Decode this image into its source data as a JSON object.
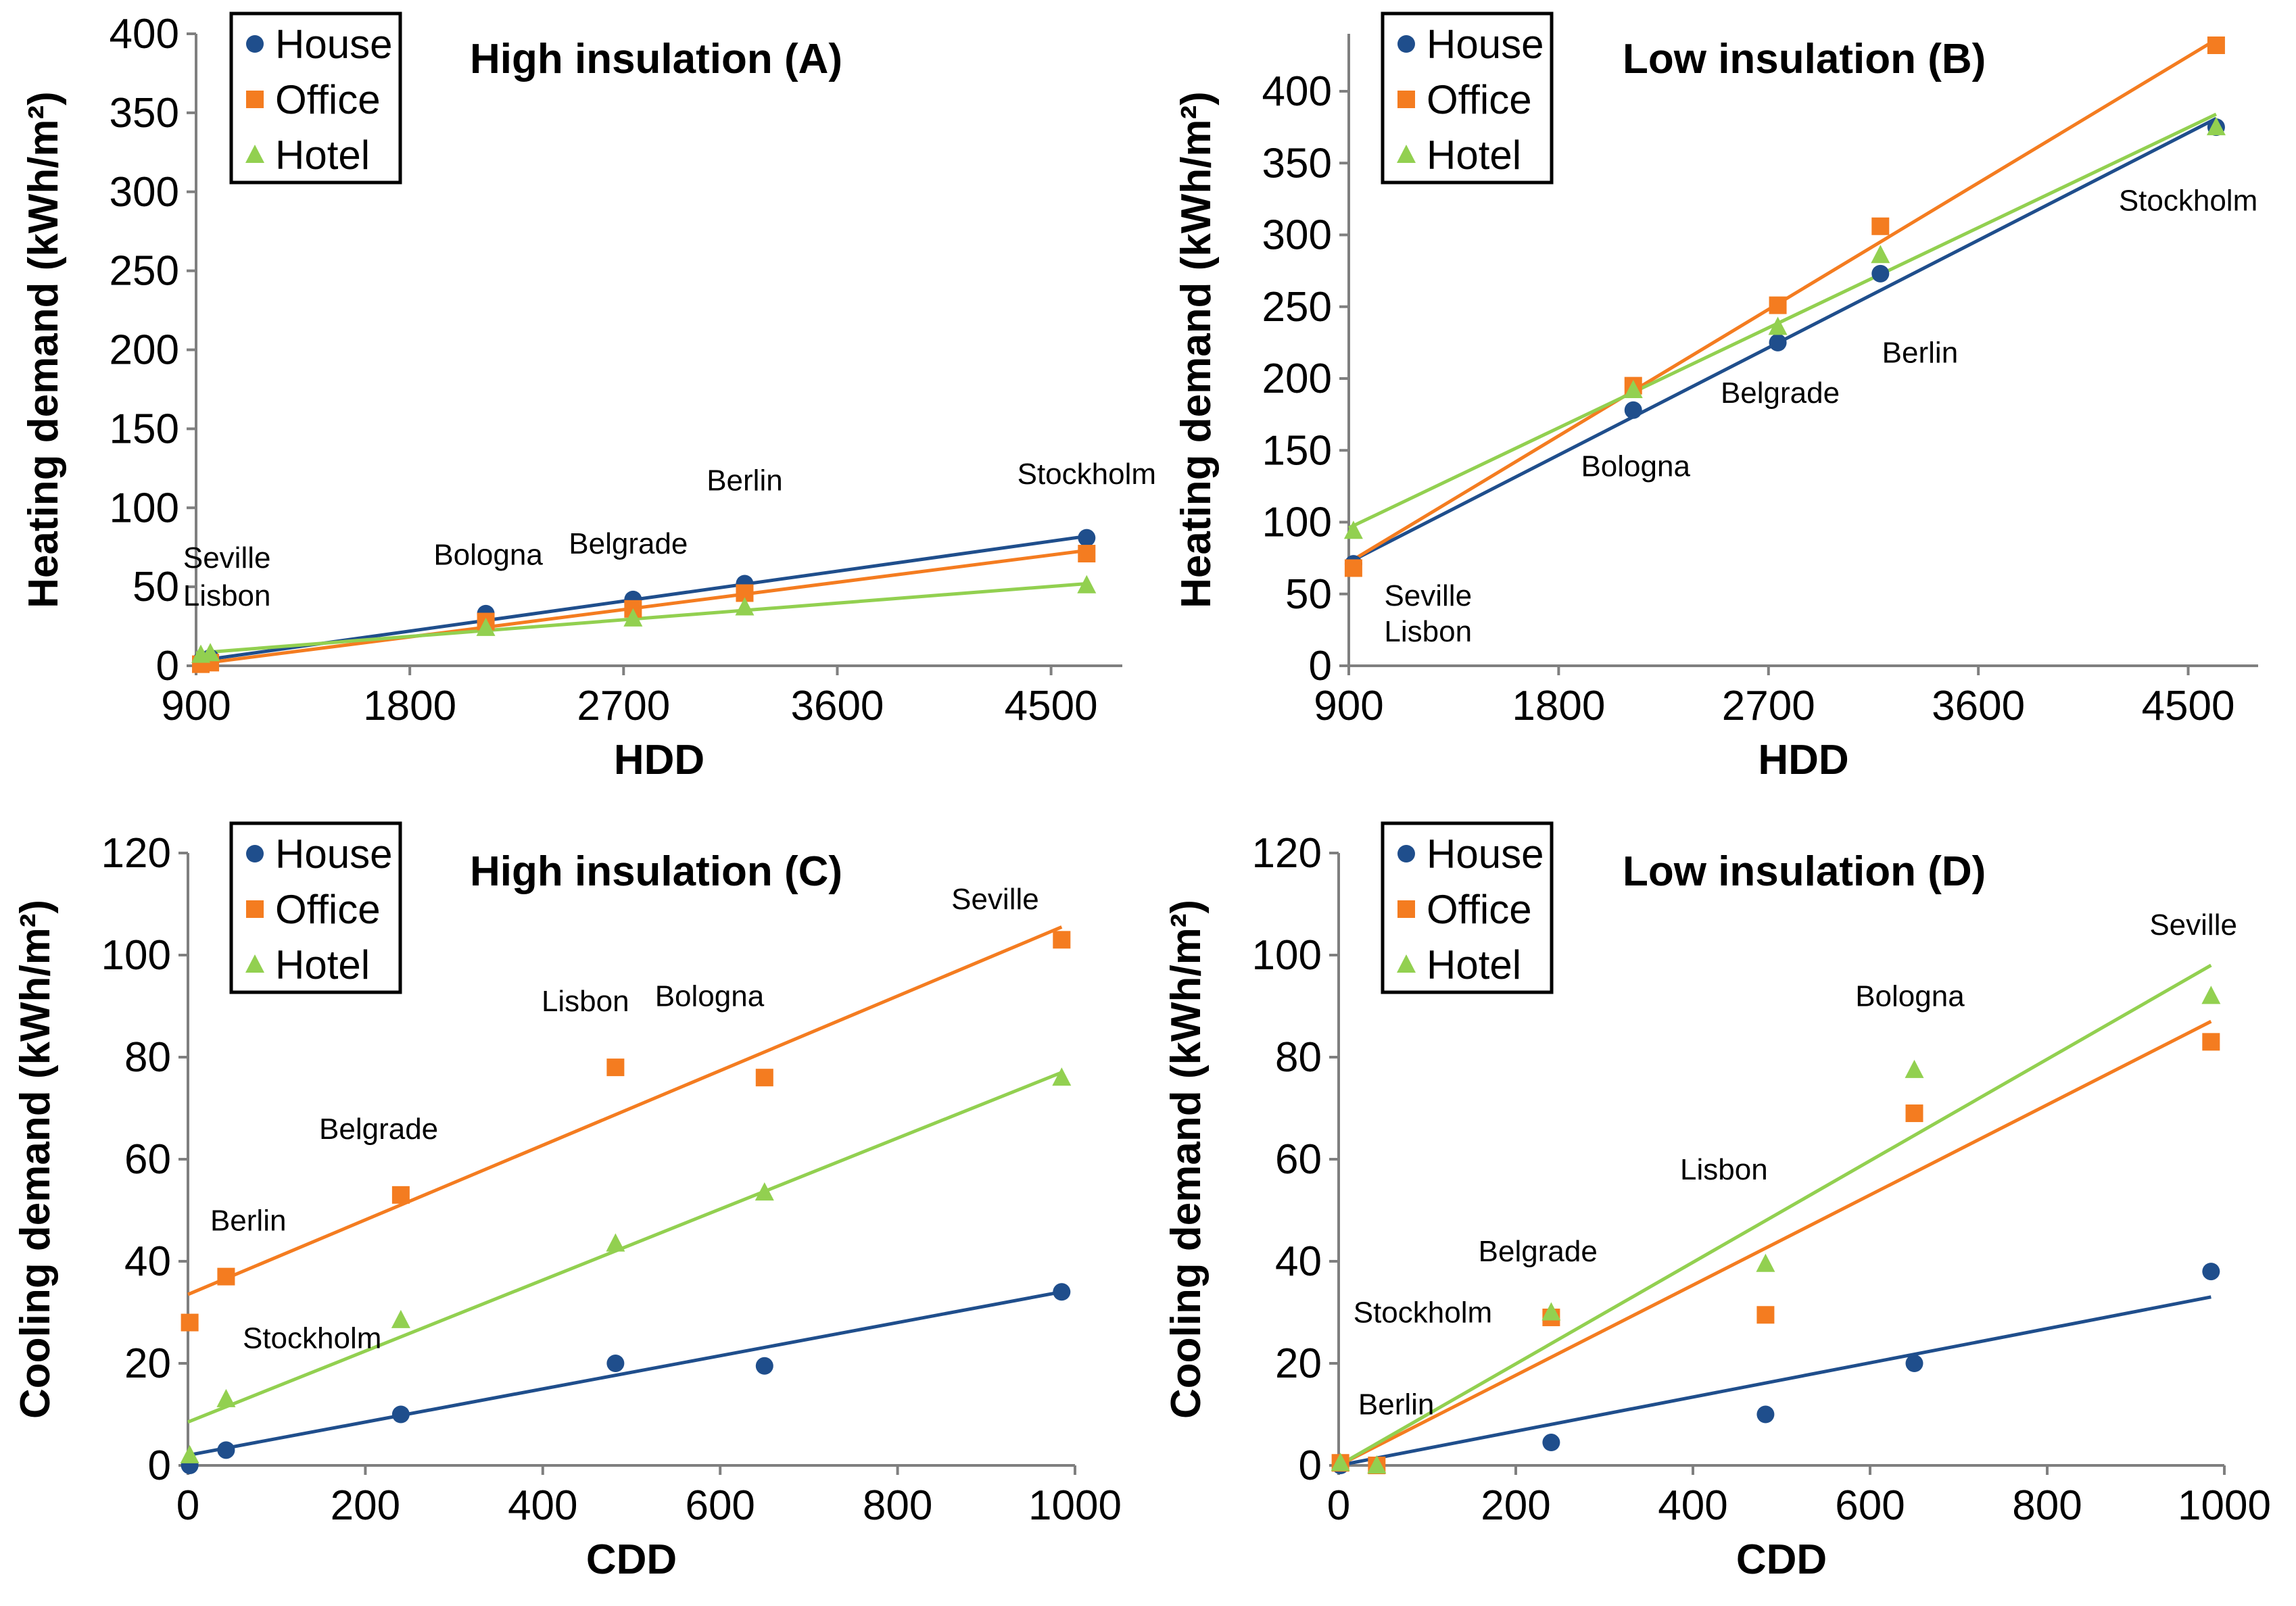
{
  "chart_data": [
    {
      "id": "A",
      "type": "scatter",
      "title": "High insulation (A)",
      "xlabel": "HDD",
      "ylabel": "Heating demand (kWh/m²)",
      "xlim": [
        900,
        4800
      ],
      "ylim": [
        0,
        400
      ],
      "xticks": [
        900,
        1800,
        2700,
        3600,
        4500
      ],
      "yticks": [
        0,
        50,
        100,
        150,
        200,
        250,
        300,
        350,
        400
      ],
      "xtick_labels": [
        "900",
        "1800",
        "2700",
        "3600",
        "4500"
      ],
      "ytick_labels": [
        "0",
        "50",
        "100",
        "150",
        "200",
        "250",
        "300",
        "350",
        "400"
      ],
      "legend": [
        "House",
        "Office",
        "Hotel"
      ],
      "legend_position": "top-left",
      "series": [
        {
          "name": "House",
          "color": "#1f4e8c",
          "marker": "circle",
          "x": [
            920,
            960,
            2120,
            2740,
            3210,
            4650
          ],
          "y": [
            3,
            5,
            33,
            42,
            52,
            81
          ],
          "fit": [
            [
              900,
              3
            ],
            [
              4650,
              82
            ]
          ]
        },
        {
          "name": "Office",
          "color": "#f47c20",
          "marker": "square",
          "x": [
            920,
            960,
            2120,
            2740,
            3210,
            4650
          ],
          "y": [
            1,
            2,
            28,
            36,
            46,
            71
          ],
          "fit": [
            [
              900,
              1
            ],
            [
              4650,
              73
            ]
          ]
        },
        {
          "name": "Hotel",
          "color": "#92d050",
          "marker": "triangle",
          "x": [
            920,
            960,
            2120,
            2740,
            3210,
            4650
          ],
          "y": [
            7,
            8,
            24,
            30,
            37,
            51
          ],
          "fit": [
            [
              900,
              8
            ],
            [
              4650,
              52
            ]
          ]
        }
      ],
      "annotations": [
        {
          "text": "Seville",
          "x": 1030,
          "y": 62
        },
        {
          "text": "Lisbon",
          "x": 1030,
          "y": 38
        },
        {
          "text": "Bologna",
          "x": 2130,
          "y": 64
        },
        {
          "text": "Belgrade",
          "x": 2720,
          "y": 71
        },
        {
          "text": "Berlin",
          "x": 3210,
          "y": 111
        },
        {
          "text": "Stockholm",
          "x": 4650,
          "y": 115
        }
      ]
    },
    {
      "id": "B",
      "type": "scatter",
      "title": "Low insulation (B)",
      "xlabel": "HDD",
      "ylabel": "Heating demand (kWh/m²)",
      "xlim": [
        900,
        4800
      ],
      "ylim": [
        0,
        440
      ],
      "xticks": [
        900,
        1800,
        2700,
        3600,
        4500
      ],
      "yticks": [
        0,
        50,
        100,
        150,
        200,
        250,
        300,
        350,
        400
      ],
      "xtick_labels": [
        "900",
        "1800",
        "2700",
        "3600",
        "4500"
      ],
      "ytick_labels": [
        "0",
        "50",
        "100",
        "150",
        "200",
        "250",
        "300",
        "350",
        "400"
      ],
      "legend": [
        "House",
        "Office",
        "Hotel"
      ],
      "legend_position": "top-left",
      "series": [
        {
          "name": "House",
          "color": "#1f4e8c",
          "marker": "circle",
          "x": [
            920,
            2120,
            2740,
            3180,
            4620
          ],
          "y": [
            71,
            178,
            225,
            273,
            375
          ],
          "fit": [
            [
              900,
              72
            ],
            [
              4620,
              381
            ]
          ]
        },
        {
          "name": "Office",
          "color": "#f47c20",
          "marker": "square",
          "x": [
            920,
            2120,
            2740,
            3180,
            4620
          ],
          "y": [
            68,
            195,
            251,
            306,
            432
          ],
          "fit": [
            [
              900,
              72
            ],
            [
              4620,
              436
            ]
          ]
        },
        {
          "name": "Hotel",
          "color": "#92d050",
          "marker": "triangle",
          "x": [
            920,
            2120,
            2740,
            3180,
            4620
          ],
          "y": [
            94,
            192,
            236,
            286,
            375
          ],
          "fit": [
            [
              900,
              96
            ],
            [
              4620,
              384
            ]
          ]
        }
      ],
      "annotations": [
        {
          "text": "Seville",
          "x": 1240,
          "y": 42
        },
        {
          "text": "Lisbon",
          "x": 1240,
          "y": 17
        },
        {
          "text": "Bologna",
          "x": 2130,
          "y": 132
        },
        {
          "text": "Belgrade",
          "x": 2750,
          "y": 183
        },
        {
          "text": "Berlin",
          "x": 3350,
          "y": 211
        },
        {
          "text": "Stockholm",
          "x": 4500,
          "y": 317
        }
      ]
    },
    {
      "id": "C",
      "type": "scatter",
      "title": "High insulation (C)",
      "xlabel": "CDD",
      "ylabel": "Cooling demand (kWh/m²)",
      "xlim": [
        0,
        1000
      ],
      "ylim": [
        0,
        120
      ],
      "xticks": [
        0,
        200,
        400,
        600,
        800,
        1000
      ],
      "yticks": [
        0,
        20,
        40,
        60,
        80,
        100,
        120
      ],
      "xtick_labels": [
        "0",
        "200",
        "400",
        "600",
        "800",
        "1000"
      ],
      "ytick_labels": [
        "0",
        "20",
        "40",
        "60",
        "80",
        "100",
        "120"
      ],
      "legend": [
        "House",
        "Office",
        "Hotel"
      ],
      "legend_position": "top-left",
      "series": [
        {
          "name": "House",
          "color": "#1f4e8c",
          "marker": "circle",
          "x": [
            2,
            43,
            240,
            482,
            650,
            985
          ],
          "y": [
            0,
            3,
            10,
            20,
            19.5,
            34
          ],
          "fit": [
            [
              0,
              2
            ],
            [
              985,
              34
            ]
          ]
        },
        {
          "name": "Office",
          "color": "#f47c20",
          "marker": "square",
          "x": [
            2,
            43,
            240,
            482,
            650,
            985
          ],
          "y": [
            28,
            37,
            53,
            78,
            76,
            103
          ],
          "fit": [
            [
              0,
              33.5
            ],
            [
              985,
              105.5
            ]
          ]
        },
        {
          "name": "Hotel",
          "color": "#92d050",
          "marker": "triangle",
          "x": [
            2,
            43,
            240,
            482,
            650,
            985
          ],
          "y": [
            2,
            13,
            28.5,
            43.5,
            53.5,
            76
          ],
          "fit": [
            [
              0,
              8.5
            ],
            [
              985,
              77
            ]
          ]
        }
      ],
      "annotations": [
        {
          "text": "Stockholm",
          "x": 140,
          "y": 23
        },
        {
          "text": "Berlin",
          "x": 68,
          "y": 46
        },
        {
          "text": "Belgrade",
          "x": 215,
          "y": 64
        },
        {
          "text": "Lisbon",
          "x": 448,
          "y": 89
        },
        {
          "text": "Bologna",
          "x": 588,
          "y": 90
        },
        {
          "text": "Seville",
          "x": 910,
          "y": 109
        }
      ]
    },
    {
      "id": "D",
      "type": "scatter",
      "title": "Low insulation (D)",
      "xlabel": "CDD",
      "ylabel": "Cooling demand (kWh/m²)",
      "xlim": [
        0,
        1000
      ],
      "ylim": [
        0,
        120
      ],
      "xticks": [
        0,
        200,
        400,
        600,
        800,
        1000
      ],
      "yticks": [
        0,
        20,
        40,
        60,
        80,
        100,
        120
      ],
      "xtick_labels": [
        "0",
        "200",
        "400",
        "600",
        "800",
        "1000"
      ],
      "ytick_labels": [
        "0",
        "20",
        "40",
        "60",
        "80",
        "100",
        "120"
      ],
      "legend": [
        "House",
        "Office",
        "Hotel"
      ],
      "legend_position": "top-left",
      "series": [
        {
          "name": "House",
          "color": "#1f4e8c",
          "marker": "circle",
          "x": [
            2,
            43,
            240,
            482,
            650,
            985
          ],
          "y": [
            0,
            0,
            4.5,
            10,
            20,
            38
          ],
          "fit": [
            [
              0,
              0
            ],
            [
              985,
              33
            ]
          ]
        },
        {
          "name": "Office",
          "color": "#f47c20",
          "marker": "square",
          "x": [
            2,
            43,
            240,
            482,
            650,
            985
          ],
          "y": [
            0.5,
            0,
            29,
            29.5,
            69,
            83
          ],
          "fit": [
            [
              0,
              0
            ],
            [
              985,
              87
            ]
          ]
        },
        {
          "name": "Hotel",
          "color": "#92d050",
          "marker": "triangle",
          "x": [
            2,
            43,
            240,
            482,
            650,
            985
          ],
          "y": [
            0.5,
            0,
            30,
            39.5,
            77.5,
            92
          ],
          "fit": [
            [
              0,
              0
            ],
            [
              985,
              98
            ]
          ]
        }
      ],
      "annotations": [
        {
          "text": "Stockholm",
          "x": 95,
          "y": 28
        },
        {
          "text": "Berlin",
          "x": 65,
          "y": 10
        },
        {
          "text": "Belgrade",
          "x": 225,
          "y": 40
        },
        {
          "text": "Lisbon",
          "x": 435,
          "y": 56
        },
        {
          "text": "Bologna",
          "x": 645,
          "y": 90
        },
        {
          "text": "Seville",
          "x": 965,
          "y": 104
        }
      ]
    }
  ]
}
